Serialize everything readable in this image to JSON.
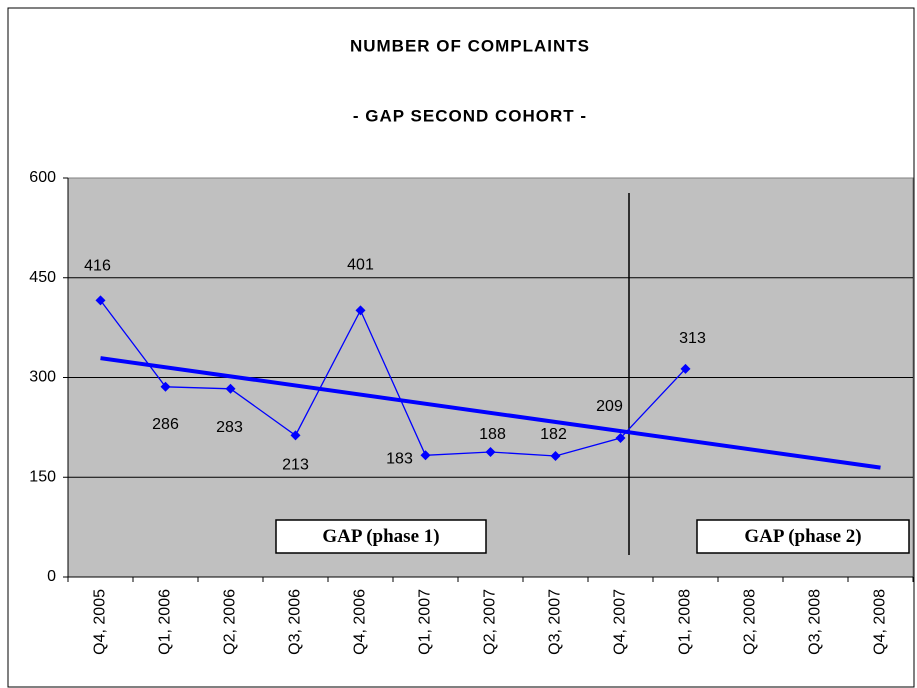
{
  "chart_data": {
    "type": "line",
    "title": "NUMBER OF COMPLAINTS",
    "subtitle": "- GAP SECOND COHORT -",
    "categories": [
      "Q4, 2005",
      "Q1, 2006",
      "Q2, 2006",
      "Q3, 2006",
      "Q4, 2006",
      "Q1, 2007",
      "Q2, 2007",
      "Q3, 2007",
      "Q4, 2007",
      "Q1, 2008",
      "Q2, 2008",
      "Q3, 2008",
      "Q4, 2008"
    ],
    "series": [
      {
        "color": "#0000ff",
        "values": [
          416,
          286,
          283,
          213,
          401,
          183,
          188,
          182,
          209,
          313,
          null,
          null,
          null
        ]
      }
    ],
    "trendline": "linear",
    "ylim": [
      0,
      600
    ],
    "yticks": [
      0,
      150,
      300,
      450,
      600
    ],
    "grid": true,
    "annotations": [
      "GAP (phase 1)",
      "GAP (phase 2)"
    ]
  }
}
